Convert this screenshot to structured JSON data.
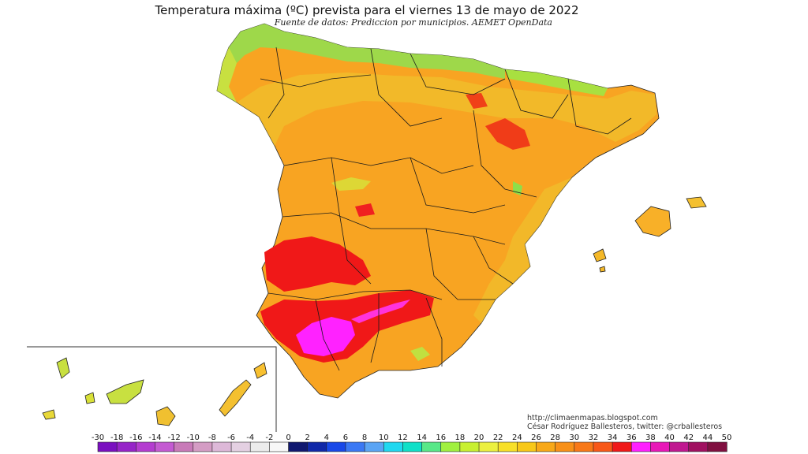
{
  "map": {
    "title": "Temperatura máxima (ºC) prevista para el viernes 13 de mayo de 2022",
    "subtitle": "Fuente de datos: Prediccion por municipios. AEMET OpenData",
    "credits": {
      "blog": "http://climaenmapas.blogspot.com",
      "author": "César Rodríguez Ballesteros, twitter: @crballesteros"
    },
    "regions": [
      "Península Ibérica",
      "Islas Baleares",
      "Islas Canarias"
    ],
    "temperature_colors": {
      "cool": "#8ede4a",
      "warm": "#f5a52a",
      "hot": "#f05a1c",
      "very_hot": "#f01818",
      "extreme": "#ff24ff"
    }
  },
  "legend": {
    "labels": [
      "-30",
      "-18",
      "-16",
      "-14",
      "-12",
      "-10",
      "-8",
      "-6",
      "-4",
      "-2",
      "0",
      "2",
      "4",
      "6",
      "8",
      "10",
      "12",
      "14",
      "16",
      "18",
      "20",
      "22",
      "24",
      "26",
      "28",
      "30",
      "32",
      "34",
      "36",
      "38",
      "40",
      "42",
      "44",
      "50"
    ],
    "colors": [
      "#7a10c0",
      "#9624c8",
      "#b43cd0",
      "#c45ad2",
      "#c87ab8",
      "#d49cc4",
      "#ddb8d8",
      "#e4d0e2",
      "#ececec",
      "#f8f8f8",
      "#101870",
      "#1028a8",
      "#1848e8",
      "#3a78f4",
      "#5aa4f4",
      "#20d8f0",
      "#10e0c8",
      "#58e888",
      "#a0f040",
      "#c8f030",
      "#ecf040",
      "#f8e028",
      "#f8c818",
      "#f8a818",
      "#f89018",
      "#f87818",
      "#f85818",
      "#f01818",
      "#ff20ff",
      "#e818b8",
      "#c01890",
      "#a01060",
      "#801040"
    ]
  }
}
